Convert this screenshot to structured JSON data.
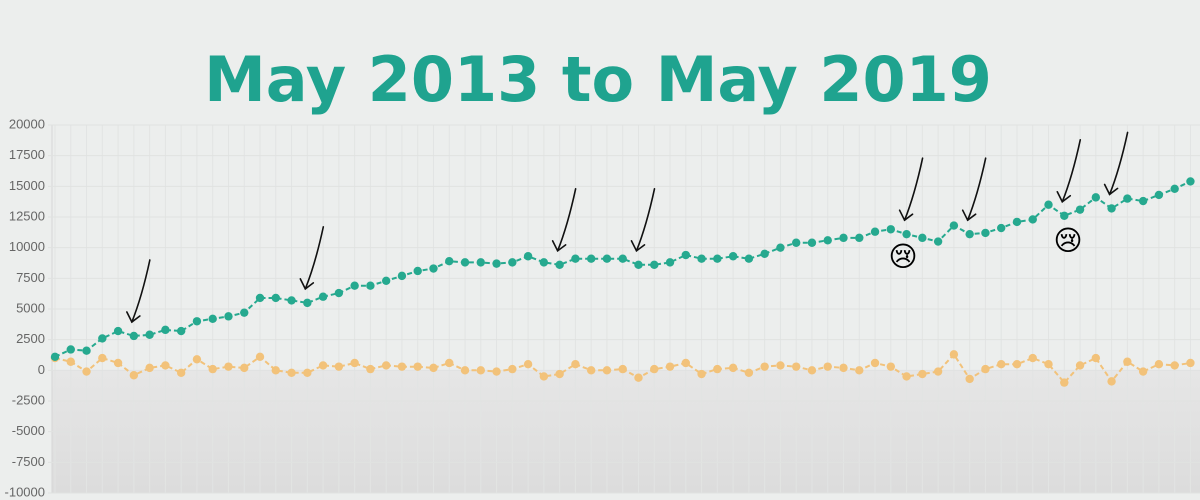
{
  "chart_data": {
    "type": "line",
    "title": "May 2013 to May 2019",
    "categories": [
      null,
      null,
      null,
      null,
      null,
      null,
      null,
      null,
      null,
      null,
      null,
      null,
      null,
      null,
      null,
      null,
      null,
      null,
      null,
      null,
      null,
      null,
      null,
      null,
      null,
      null,
      null,
      null,
      null,
      null,
      null,
      null,
      null,
      null,
      null,
      null,
      null,
      null,
      null,
      null,
      null,
      null,
      null,
      null,
      null,
      null,
      null,
      null,
      null,
      null,
      null,
      null,
      null,
      null,
      null,
      null,
      null,
      null,
      null,
      null,
      null,
      null,
      null,
      null,
      null,
      null,
      null,
      null,
      null,
      null,
      null,
      null,
      null
    ],
    "series": [
      {
        "color": "#26a98f",
        "values": [
          1100,
          1700,
          1600,
          2600,
          3200,
          2800,
          2900,
          3300,
          3200,
          4000,
          4200,
          4400,
          4700,
          5900,
          5900,
          5700,
          5500,
          6000,
          6300,
          6900,
          6900,
          7300,
          7700,
          8100,
          8300,
          8900,
          8800,
          8800,
          8700,
          8800,
          9300,
          8800,
          8600,
          9100,
          9100,
          9100,
          9100,
          8600,
          8600,
          8800,
          9400,
          9100,
          9100,
          9300,
          9100,
          9500,
          10000,
          10400,
          10400,
          10600,
          10800,
          10800,
          11300,
          11500,
          11100,
          10800,
          10500,
          11800,
          11100,
          11200,
          11600,
          12100,
          12300,
          13500,
          12600,
          13100,
          14100,
          13200,
          14000,
          13800,
          14300,
          14800,
          15400
        ]
      },
      {
        "color": "#f2c27a",
        "values": [
          1000,
          700,
          -100,
          1000,
          600,
          -400,
          200,
          400,
          -200,
          900,
          100,
          300,
          200,
          1100,
          0,
          -200,
          -200,
          400,
          300,
          600,
          100,
          400,
          300,
          300,
          200,
          600,
          0,
          0,
          -100,
          100,
          500,
          -500,
          -300,
          500,
          0,
          0,
          100,
          -600,
          100,
          300,
          600,
          -300,
          100,
          200,
          -200,
          300,
          400,
          300,
          0,
          300,
          200,
          0,
          600,
          300,
          -500,
          -300,
          -100,
          1300,
          -700,
          100,
          500,
          500,
          1000,
          500,
          -1000,
          400,
          1000,
          -900,
          700,
          -100,
          500,
          400,
          600
        ]
      }
    ],
    "ylim": [
      -10000,
      20000
    ],
    "yticks": [
      -10000,
      -7500,
      -5000,
      -2500,
      0,
      2500,
      5000,
      7500,
      10000,
      12500,
      15000,
      17500,
      20000
    ],
    "grid": true,
    "annotations": [
      "😢",
      "😢"
    ]
  }
}
